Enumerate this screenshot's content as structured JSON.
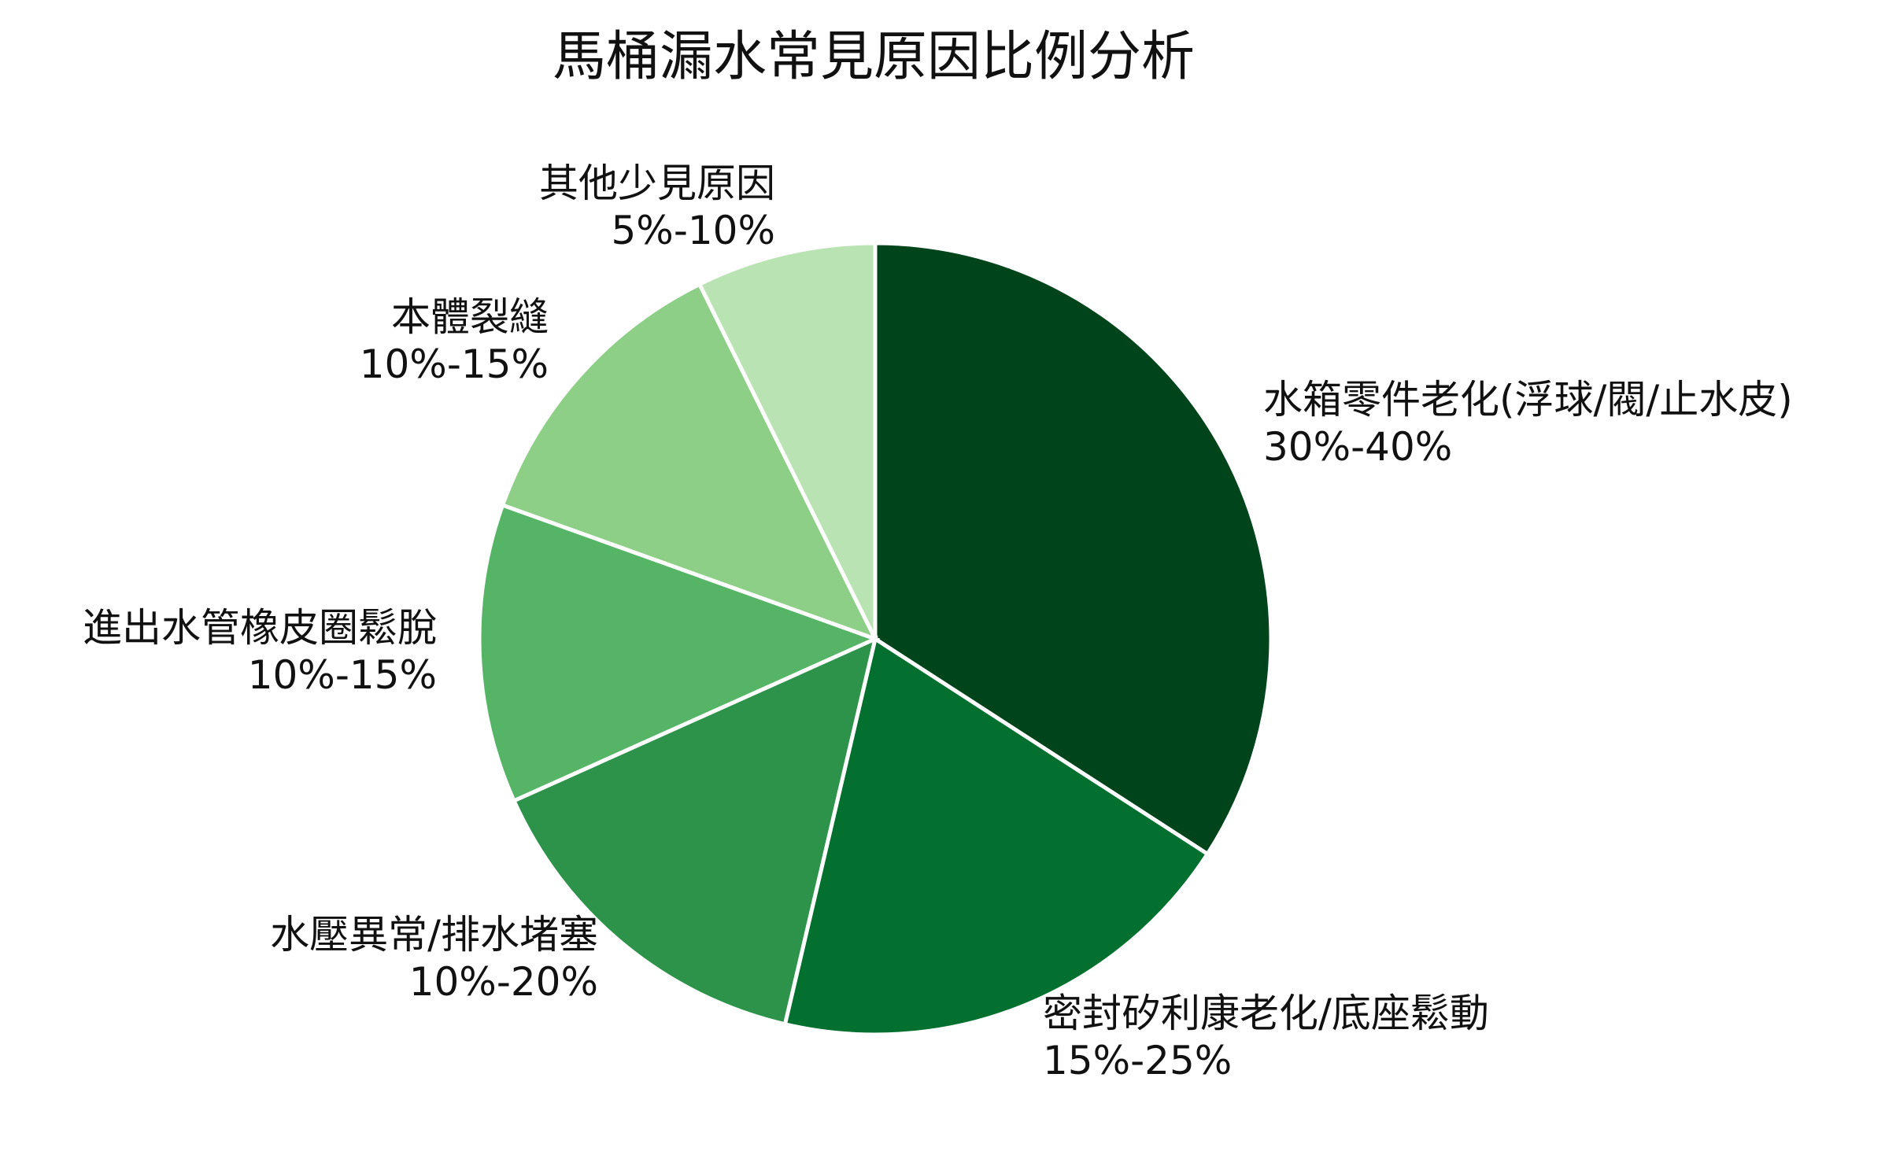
{
  "chart_data": {
    "type": "pie",
    "title": "馬桶漏水常見原因比例分析",
    "start_angle": "12 o'clock",
    "direction": "clockwise",
    "legend": "none",
    "slices": [
      {
        "label": "水箱零件老化(浮球/閥/止水皮)",
        "range_text": "30%-40%",
        "value": 35,
        "color": "#00441b"
      },
      {
        "label": "密封矽利康老化/底座鬆動",
        "range_text": "15%-25%",
        "value": 20,
        "color": "#04702f"
      },
      {
        "label": "水壓異常/排水堵塞",
        "range_text": "10%-20%",
        "value": 15,
        "color": "#2d934b"
      },
      {
        "label": "進出水管橡皮圈鬆脫",
        "range_text": "10%-15%",
        "value": 12.5,
        "color": "#56b467"
      },
      {
        "label": "本體裂縫",
        "range_text": "10%-15%",
        "value": 12.5,
        "color": "#8ecf88"
      },
      {
        "label": "其他少見原因",
        "range_text": "5%-10%",
        "value": 7.5,
        "color": "#b9e3b2"
      }
    ]
  }
}
